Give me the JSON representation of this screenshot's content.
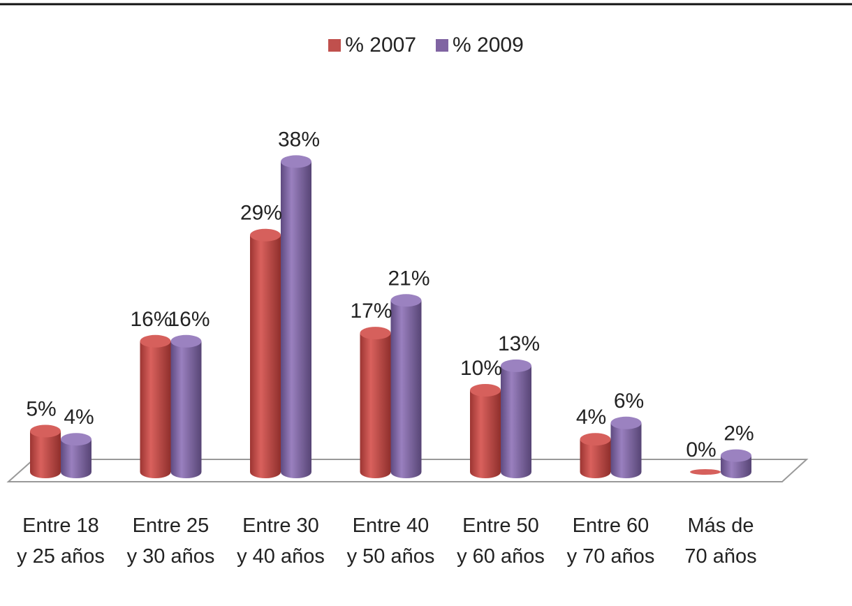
{
  "chart_data": {
    "type": "bar",
    "style": "3d-cylinder",
    "categories": [
      [
        "Entre 18",
        "y 25 años"
      ],
      [
        "Entre 25",
        "y 30 años"
      ],
      [
        "Entre 30",
        "y 40 años"
      ],
      [
        "Entre 40",
        "y 50 años"
      ],
      [
        "Entre 50",
        "y 60 años"
      ],
      [
        "Entre 60",
        "y 70 años"
      ],
      [
        "Más de",
        "70 años"
      ]
    ],
    "series": [
      {
        "name": "% 2007",
        "color": "#c0504d",
        "values": [
          5,
          16,
          29,
          17,
          10,
          4,
          0
        ],
        "labels": [
          "5%",
          "16%",
          "29%",
          "17%",
          "10%",
          "4%",
          "0%"
        ]
      },
      {
        "name": "% 2009",
        "color": "#8064a2",
        "values": [
          4,
          16,
          38,
          21,
          13,
          6,
          2
        ],
        "labels": [
          "4%",
          "16%",
          "38%",
          "21%",
          "13%",
          "6%",
          "2%"
        ]
      }
    ],
    "ylim": [
      0,
      40
    ],
    "grid": false,
    "legend_position": "top-center"
  }
}
